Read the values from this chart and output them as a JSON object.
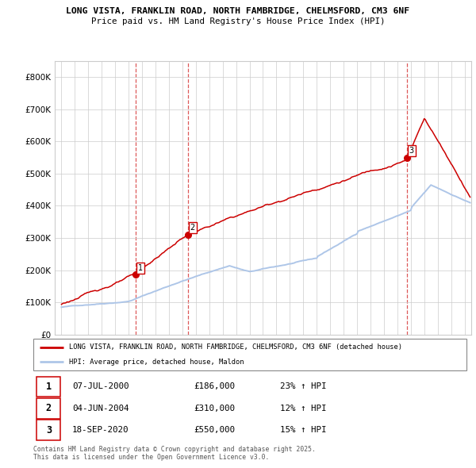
{
  "title1": "LONG VISTA, FRANKLIN ROAD, NORTH FAMBRIDGE, CHELMSFORD, CM3 6NF",
  "title2": "Price paid vs. HM Land Registry's House Price Index (HPI)",
  "hpi_label": "HPI: Average price, detached house, Maldon",
  "property_label": "LONG VISTA, FRANKLIN ROAD, NORTH FAMBRIDGE, CHELMSFORD, CM3 6NF (detached house)",
  "footer": "Contains HM Land Registry data © Crown copyright and database right 2025.\nThis data is licensed under the Open Government Licence v3.0.",
  "sale_points": [
    {
      "date_x": 2000.52,
      "price": 186000,
      "label": "1"
    },
    {
      "date_x": 2004.43,
      "price": 310000,
      "label": "2"
    },
    {
      "date_x": 2020.72,
      "price": 550000,
      "label": "3"
    }
  ],
  "transactions": [
    {
      "num": "1",
      "date": "07-JUL-2000",
      "price": "£186,000",
      "hpi": "23% ↑ HPI"
    },
    {
      "num": "2",
      "date": "04-JUN-2004",
      "price": "£310,000",
      "hpi": "12% ↑ HPI"
    },
    {
      "num": "3",
      "date": "18-SEP-2020",
      "price": "£550,000",
      "hpi": "15% ↑ HPI"
    }
  ],
  "hpi_color": "#aec6e8",
  "price_color": "#cc0000",
  "marker_color": "#cc0000",
  "vline_color": "#cc0000",
  "background_color": "#ffffff",
  "plot_bg_color": "#ffffff",
  "grid_color": "#cccccc",
  "ylim": [
    0,
    850000
  ],
  "xlim_start": 1994.5,
  "xlim_end": 2025.5,
  "yticks": [
    0,
    100000,
    200000,
    300000,
    400000,
    500000,
    600000,
    700000,
    800000
  ],
  "ytick_labels": [
    "£0",
    "£100K",
    "£200K",
    "£300K",
    "£400K",
    "£500K",
    "£600K",
    "£700K",
    "£800K"
  ],
  "xticks": [
    1995,
    1996,
    1997,
    1998,
    1999,
    2000,
    2001,
    2002,
    2003,
    2004,
    2005,
    2006,
    2007,
    2008,
    2009,
    2010,
    2011,
    2012,
    2013,
    2014,
    2015,
    2016,
    2017,
    2018,
    2019,
    2020,
    2021,
    2022,
    2023,
    2024,
    2025
  ]
}
